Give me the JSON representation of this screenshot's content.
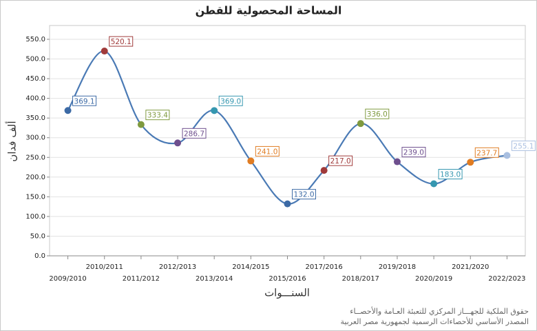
{
  "chart_data": {
    "type": "line",
    "title": "المساحة المحصولية للقطن",
    "y_label": "ألف فدان",
    "x_label": "السنـــوات",
    "categories": [
      "2009/2010",
      "2010/2011",
      "2011/2012",
      "2012/2013",
      "2013/2014",
      "2014/2015",
      "2015/2016",
      "2017/2016",
      "2018/2017",
      "2019/2018",
      "2020/2019",
      "2021/2020",
      "2022/2023"
    ],
    "values": [
      369.1,
      520.1,
      333.4,
      286.7,
      369.0,
      241.0,
      132.0,
      217.0,
      336.0,
      239.0,
      183.0,
      237.7,
      255.1
    ],
    "value_labels": [
      "369.1",
      "520.1",
      "333.4",
      "286.7",
      "369.0",
      "241.0",
      "132.0",
      "217.0",
      "336.0",
      "239.0",
      "183.0",
      "237.7",
      "255.1"
    ],
    "color": "#4a7ab5",
    "point_colors": [
      "#3c6aa5",
      "#a03a3a",
      "#7f9a3f",
      "#6e4f8e",
      "#3597b0",
      "#e07c22",
      "#3c6aa5",
      "#a03a3a",
      "#7f9a3f",
      "#6e4f8e",
      "#3597b0",
      "#e07c22",
      "#a9bfe0"
    ],
    "ylim": [
      0,
      585
    ],
    "yticks": [
      {
        "value": 0,
        "label": "0.0"
      },
      {
        "value": 50,
        "label": "50.0"
      },
      {
        "value": 100,
        "label": "100.0"
      },
      {
        "value": 150,
        "label": "150.0"
      },
      {
        "value": 200,
        "label": "200.0"
      },
      {
        "value": 250,
        "label": "250.0"
      },
      {
        "value": 300,
        "label": "300.0"
      },
      {
        "value": 350,
        "label": "350.0"
      },
      {
        "value": 400,
        "label": "400.0"
      },
      {
        "value": 450,
        "label": "450.0"
      },
      {
        "value": 500,
        "label": "500.0"
      },
      {
        "value": 550,
        "label": "550.0"
      }
    ],
    "grid": true,
    "footer": [
      "حقوق الملكية للجهـــاز المركزي للتعبئة العـامة والأحصــاء",
      "المصدر الأساسي للأحصاءات الرسمية لجمهورية مصر العربية"
    ]
  }
}
